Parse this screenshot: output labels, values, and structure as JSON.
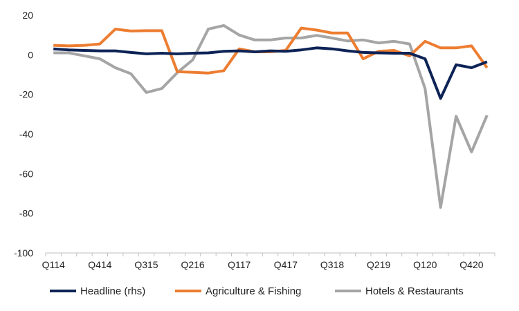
{
  "chart_data": {
    "type": "line",
    "title": "",
    "xlabel": "",
    "ylabel": "",
    "ylim": [
      -100,
      20
    ],
    "yticks": [
      20,
      0,
      -20,
      -40,
      -60,
      -80,
      -100
    ],
    "grid": false,
    "legend_position": "bottom",
    "categories": [
      "Q114",
      "Q214",
      "Q314",
      "Q414",
      "Q115",
      "Q215",
      "Q315",
      "Q415",
      "Q116",
      "Q216",
      "Q316",
      "Q416",
      "Q117",
      "Q217",
      "Q317",
      "Q417",
      "Q118",
      "Q218",
      "Q318",
      "Q418",
      "Q119",
      "Q219",
      "Q319",
      "Q419",
      "Q120",
      "Q220",
      "Q320",
      "Q420",
      "Q121"
    ],
    "xtick_labels": [
      "Q114",
      "Q414",
      "Q315",
      "Q216",
      "Q117",
      "Q417",
      "Q318",
      "Q219",
      "Q120",
      "Q420"
    ],
    "series": [
      {
        "name": "Headline (rhs)",
        "color": "#0d2356",
        "values": [
          3,
          2.5,
          2.2,
          2,
          2,
          1.2,
          0.5,
          0.8,
          0.5,
          0.8,
          1,
          1.8,
          2,
          1.5,
          2,
          1.8,
          2.5,
          3.5,
          3,
          2,
          1.2,
          1,
          0.8,
          0.8,
          -2,
          -22,
          -5,
          -6.5,
          -3.5
        ]
      },
      {
        "name": "Agriculture & Fishing",
        "color": "#ed7d31",
        "values": [
          4.8,
          4.5,
          4.8,
          5.5,
          13,
          12,
          12.2,
          12.2,
          -8.5,
          -8.8,
          -9.2,
          -8,
          3,
          1.5,
          1.5,
          2.2,
          13.5,
          12.5,
          11,
          11,
          -2,
          1.8,
          2.2,
          -0.5,
          6.8,
          3.5,
          3.5,
          4.5,
          -6.5
        ]
      },
      {
        "name": "Hotels & Restaurants",
        "color": "#a5a5a5",
        "values": [
          1,
          1,
          -0.5,
          -2,
          -6.5,
          -9.5,
          -19,
          -17,
          -9,
          -2.5,
          13,
          14.8,
          10,
          7.5,
          7.5,
          8.5,
          8.5,
          9.8,
          8.5,
          7,
          7.5,
          6,
          6.8,
          5.5,
          -17,
          -77,
          -31,
          -49,
          -30.5
        ]
      }
    ]
  }
}
